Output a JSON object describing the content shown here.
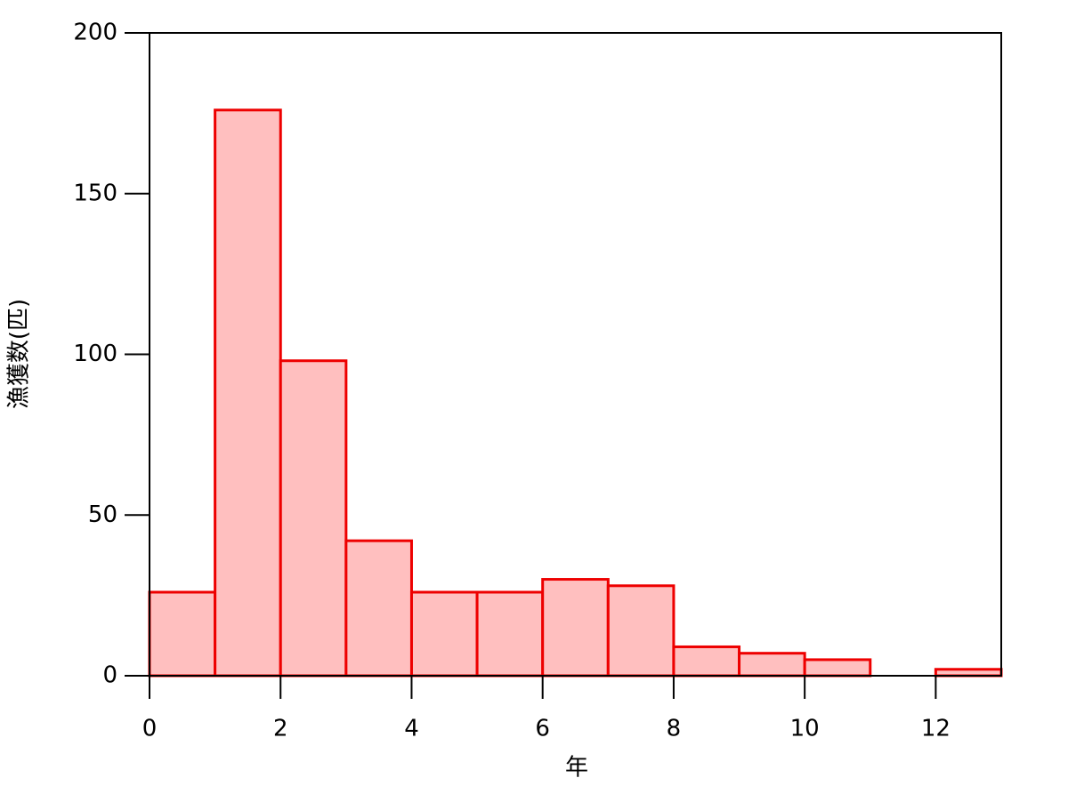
{
  "chart_data": {
    "type": "histogram",
    "x_label": "年",
    "y_label": "漁獲数(匹)",
    "bins": [
      0,
      1,
      2,
      3,
      4,
      5,
      6,
      7,
      8,
      9,
      10,
      11,
      12,
      13
    ],
    "values": [
      26,
      176,
      98,
      42,
      26,
      26,
      30,
      28,
      9,
      7,
      5,
      0,
      2
    ],
    "color": "#ffbfbf",
    "edge_color": "#ee0000",
    "xlim": [
      0,
      13
    ],
    "ylim": [
      0,
      200
    ],
    "xticks": [
      0,
      2,
      4,
      6,
      8,
      10,
      12
    ],
    "yticks": [
      0,
      50,
      100,
      150,
      200
    ]
  }
}
